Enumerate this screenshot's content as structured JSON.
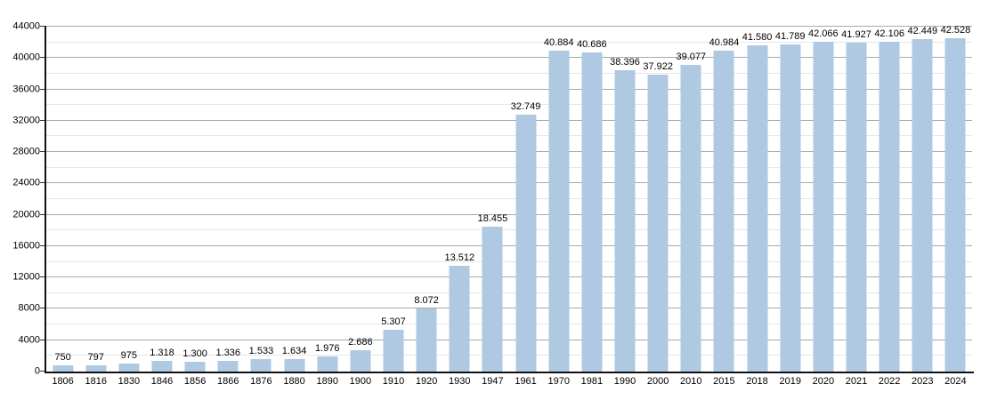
{
  "chart": {
    "background_color": "#ffffff",
    "bar_color": "#afc9e2",
    "grid_major_color": "#a9a9a9",
    "grid_minor_color": "#e6e6e6",
    "axis_color": "#111111",
    "text_color": "#000000"
  },
  "chart_data": {
    "type": "bar",
    "title": "",
    "xlabel": "",
    "ylabel": "",
    "grid": true,
    "legend_position": "none",
    "ylim": [
      0,
      44000
    ],
    "y_major_step": 4000,
    "y_minor_step": 2000,
    "y_tick_labels": [
      "0",
      "4000",
      "8000",
      "12000",
      "16000",
      "20000",
      "24000",
      "28000",
      "32000",
      "36000",
      "40000",
      "44000"
    ],
    "categories": [
      "1806",
      "1816",
      "1830",
      "1846",
      "1856",
      "1866",
      "1876",
      "1880",
      "1890",
      "1900",
      "1910",
      "1920",
      "1930",
      "1947",
      "1961",
      "1970",
      "1981",
      "1990",
      "2000",
      "2010",
      "2015",
      "2018",
      "2019",
      "2020",
      "2021",
      "2022",
      "2023",
      "2024"
    ],
    "values": [
      750,
      797,
      975,
      1318,
      1300,
      1336,
      1533,
      1634,
      1976,
      2686,
      5307,
      8072,
      13512,
      18455,
      32749,
      40884,
      40686,
      38396,
      37922,
      39077,
      40984,
      41580,
      41789,
      42066,
      41927,
      42106,
      42449,
      42528
    ],
    "value_labels": [
      "750",
      "797",
      "975",
      "1.318",
      "1.300",
      "1.336",
      "1.533",
      "1.634",
      "1.976",
      "2.686",
      "5.307",
      "8.072",
      "13.512",
      "18.455",
      "32.749",
      "40.884",
      "40.686",
      "38.396",
      "37.922",
      "39.077",
      "40.984",
      "41.580",
      "41.789",
      "42.066",
      "41.927",
      "42.106",
      "42.449",
      "42.528"
    ]
  }
}
